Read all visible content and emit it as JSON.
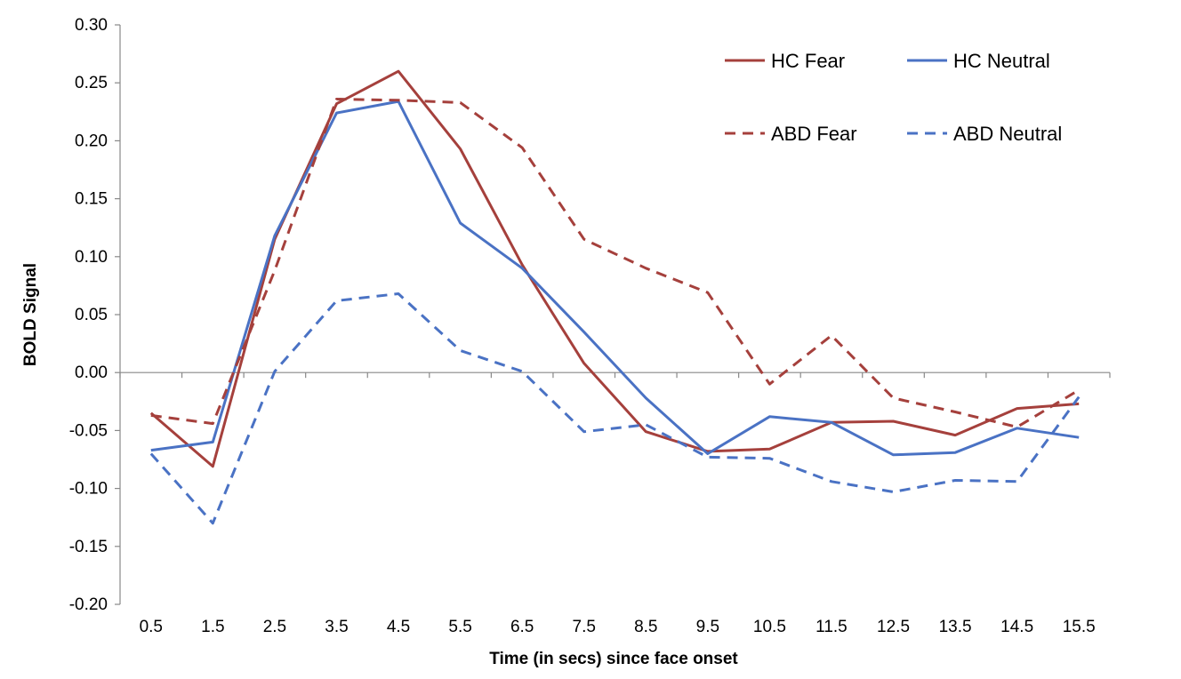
{
  "chart_data": {
    "type": "line",
    "title": "",
    "xlabel": "Time (in secs) since face onset",
    "ylabel": "BOLD Signal",
    "categories": [
      "0.5",
      "1.5",
      "2.5",
      "3.5",
      "4.5",
      "5.5",
      "6.5",
      "7.5",
      "8.5",
      "9.5",
      "10.5",
      "11.5",
      "12.5",
      "13.5",
      "14.5",
      "15.5"
    ],
    "yticks": [
      "0.30",
      "0.25",
      "0.20",
      "0.15",
      "0.10",
      "0.05",
      "0.00",
      "-0.05",
      "-0.10",
      "-0.15",
      "-0.20"
    ],
    "ylim": [
      -0.2,
      0.3
    ],
    "grid": false,
    "legend_position": "top-right",
    "series": [
      {
        "name": "HC Fear",
        "color": "#a5403c",
        "dash": "solid",
        "values": [
          -0.035,
          -0.081,
          0.115,
          0.232,
          0.26,
          0.193,
          0.093,
          0.008,
          -0.051,
          -0.068,
          -0.066,
          -0.043,
          -0.042,
          -0.054,
          -0.031,
          -0.027
        ]
      },
      {
        "name": "HC Neutral",
        "color": "#4a72c4",
        "dash": "solid",
        "values": [
          -0.067,
          -0.06,
          0.118,
          0.224,
          0.234,
          0.129,
          0.09,
          0.035,
          -0.022,
          -0.07,
          -0.038,
          -0.043,
          -0.071,
          -0.069,
          -0.048,
          -0.056
        ]
      },
      {
        "name": "ABD Fear",
        "color": "#a5403c",
        "dash": "dashed",
        "values": [
          -0.037,
          -0.044,
          0.088,
          0.236,
          0.235,
          0.233,
          0.194,
          0.115,
          0.09,
          0.069,
          -0.01,
          0.032,
          -0.022,
          -0.034,
          -0.047,
          -0.015
        ]
      },
      {
        "name": "ABD Neutral",
        "color": "#4a72c4",
        "dash": "dashed",
        "values": [
          -0.07,
          -0.13,
          0.001,
          0.062,
          0.068,
          0.019,
          0.001,
          -0.051,
          -0.045,
          -0.073,
          -0.074,
          -0.094,
          -0.103,
          -0.093,
          -0.094,
          -0.021
        ]
      }
    ]
  }
}
